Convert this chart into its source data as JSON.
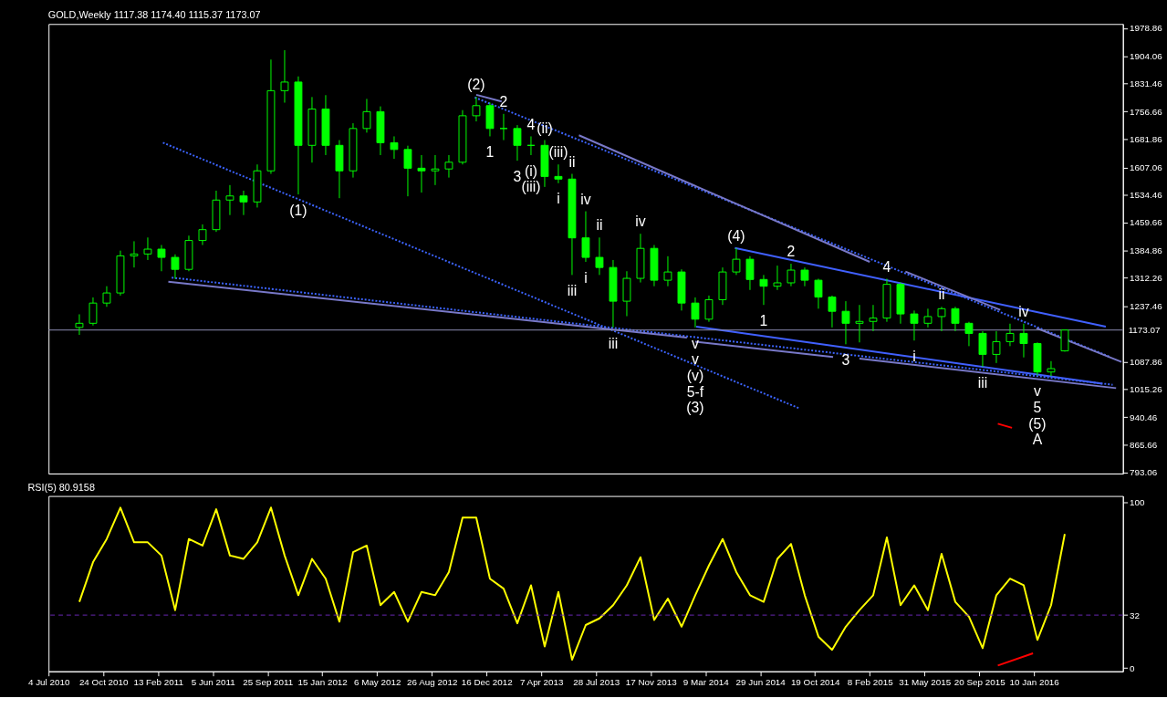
{
  "chart_data": [
    {
      "type": "candlestick",
      "title": "GOLD,Weekly 1117.38 1174.40 1115.37 1173.07",
      "color": "#00ff00",
      "tick_labels": "y",
      "x": [
        "2010-09-05",
        "2010-10-03",
        "2010-10-31",
        "2010-11-28",
        "2010-12-26",
        "2011-01-23",
        "2011-02-20",
        "2011-03-20",
        "2011-04-17",
        "2011-05-15",
        "2011-06-12",
        "2011-07-10",
        "2011-08-07",
        "2011-09-04",
        "2011-10-02",
        "2011-10-30",
        "2011-11-27",
        "2011-12-25",
        "2012-01-22",
        "2012-02-19",
        "2012-03-18",
        "2012-04-15",
        "2012-05-13",
        "2012-06-10",
        "2012-07-08",
        "2012-08-05",
        "2012-09-02",
        "2012-09-30",
        "2012-10-28",
        "2012-11-25",
        "2012-12-23",
        "2013-01-20",
        "2013-02-17",
        "2013-03-17",
        "2013-04-14",
        "2013-05-12",
        "2013-06-09",
        "2013-07-07",
        "2013-08-04",
        "2013-09-01",
        "2013-09-29",
        "2013-10-27",
        "2013-11-24",
        "2013-12-22",
        "2014-01-19",
        "2014-02-16",
        "2014-03-16",
        "2014-04-13",
        "2014-05-11",
        "2014-06-08",
        "2014-07-06",
        "2014-08-03",
        "2014-08-31",
        "2014-09-28",
        "2014-10-26",
        "2014-11-23",
        "2014-12-21",
        "2015-01-18",
        "2015-02-15",
        "2015-03-15",
        "2015-04-12",
        "2015-05-10",
        "2015-06-07",
        "2015-07-05",
        "2015-08-02",
        "2015-08-30",
        "2015-09-27",
        "2015-10-25",
        "2015-11-22",
        "2015-12-20",
        "2016-01-17",
        "2016-02-14",
        "2016-03-13"
      ],
      "ohlc": [
        [
          1180,
          1215,
          1160,
          1191
        ],
        [
          1191,
          1260,
          1185,
          1245
        ],
        [
          1245,
          1290,
          1235,
          1272
        ],
        [
          1272,
          1385,
          1265,
          1371
        ],
        [
          1371,
          1410,
          1340,
          1376
        ],
        [
          1376,
          1420,
          1360,
          1389
        ],
        [
          1389,
          1400,
          1330,
          1367
        ],
        [
          1367,
          1375,
          1310,
          1335
        ],
        [
          1335,
          1425,
          1330,
          1412
        ],
        [
          1412,
          1455,
          1400,
          1441
        ],
        [
          1441,
          1545,
          1435,
          1520
        ],
        [
          1520,
          1560,
          1480,
          1531
        ],
        [
          1531,
          1545,
          1480,
          1515
        ],
        [
          1515,
          1615,
          1500,
          1598
        ],
        [
          1598,
          1895,
          1590,
          1812
        ],
        [
          1812,
          1920,
          1780,
          1835
        ],
        [
          1835,
          1850,
          1535,
          1666
        ],
        [
          1666,
          1795,
          1620,
          1763
        ],
        [
          1763,
          1800,
          1640,
          1666
        ],
        [
          1666,
          1680,
          1525,
          1598
        ],
        [
          1598,
          1725,
          1580,
          1711
        ],
        [
          1711,
          1790,
          1700,
          1756
        ],
        [
          1756,
          1770,
          1640,
          1673
        ],
        [
          1673,
          1690,
          1630,
          1655
        ],
        [
          1655,
          1665,
          1530,
          1605
        ],
        [
          1605,
          1640,
          1540,
          1598
        ],
        [
          1598,
          1640,
          1560,
          1603
        ],
        [
          1603,
          1640,
          1580,
          1621
        ],
        [
          1621,
          1760,
          1615,
          1745
        ],
        [
          1745,
          1795,
          1730,
          1772
        ],
        [
          1772,
          1780,
          1690,
          1711
        ],
        [
          1711,
          1750,
          1680,
          1711
        ],
        [
          1711,
          1720,
          1625,
          1666
        ],
        [
          1666,
          1690,
          1640,
          1666
        ],
        [
          1666,
          1680,
          1555,
          1583
        ],
        [
          1583,
          1615,
          1565,
          1576
        ],
        [
          1576,
          1590,
          1320,
          1419
        ],
        [
          1419,
          1490,
          1355,
          1367
        ],
        [
          1367,
          1420,
          1320,
          1340
        ],
        [
          1340,
          1360,
          1180,
          1250
        ],
        [
          1250,
          1330,
          1210,
          1311
        ],
        [
          1311,
          1430,
          1300,
          1391
        ],
        [
          1391,
          1400,
          1290,
          1306
        ],
        [
          1306,
          1370,
          1290,
          1328
        ],
        [
          1328,
          1335,
          1225,
          1245
        ],
        [
          1245,
          1260,
          1180,
          1202
        ],
        [
          1202,
          1265,
          1195,
          1254
        ],
        [
          1254,
          1340,
          1240,
          1328
        ],
        [
          1328,
          1392,
          1320,
          1362
        ],
        [
          1362,
          1370,
          1280,
          1308
        ],
        [
          1308,
          1320,
          1240,
          1290
        ],
        [
          1290,
          1345,
          1280,
          1299
        ],
        [
          1299,
          1350,
          1290,
          1333
        ],
        [
          1333,
          1340,
          1290,
          1306
        ],
        [
          1306,
          1310,
          1230,
          1261
        ],
        [
          1261,
          1265,
          1180,
          1223
        ],
        [
          1223,
          1250,
          1135,
          1191
        ],
        [
          1191,
          1240,
          1140,
          1196
        ],
        [
          1196,
          1240,
          1170,
          1205
        ],
        [
          1205,
          1310,
          1195,
          1295
        ],
        [
          1295,
          1300,
          1190,
          1216
        ],
        [
          1216,
          1225,
          1145,
          1191
        ],
        [
          1191,
          1230,
          1180,
          1209
        ],
        [
          1209,
          1235,
          1170,
          1230
        ],
        [
          1230,
          1235,
          1170,
          1191
        ],
        [
          1191,
          1195,
          1130,
          1164
        ],
        [
          1164,
          1170,
          1075,
          1108
        ],
        [
          1108,
          1170,
          1085,
          1142
        ],
        [
          1142,
          1190,
          1130,
          1164
        ],
        [
          1164,
          1190,
          1100,
          1137
        ],
        [
          1137,
          1140,
          1052,
          1061
        ],
        [
          1061,
          1090,
          1050,
          1070
        ],
        [
          1117.38,
          1174.4,
          1115.37,
          1173.07
        ]
      ],
      "series": [
        {
          "type": "line",
          "x": [
            "2011-02-23",
            "2014-09-17"
          ],
          "values": [
            1673,
            964
          ],
          "color": "#3c64ff",
          "line_style": "dotted"
        },
        {
          "type": "line",
          "x": [
            "2012-11-22",
            "2016-06-12"
          ],
          "values": [
            1794,
            1102
          ],
          "color": "#3c64ff",
          "line_style": "dotted"
        },
        {
          "type": "line",
          "x": [
            "2011-03-13",
            "2016-06-19"
          ],
          "values": [
            1313,
            1027
          ],
          "color": "#3c64ff",
          "line_style": "dotted"
        },
        {
          "type": "line",
          "x": [
            "2014-05-08",
            "2016-06-05"
          ],
          "values": [
            1392,
            1182
          ],
          "color": "#4060ff",
          "line_style": "solid"
        },
        {
          "type": "line",
          "x": [
            "2014-02-18",
            "2016-05-29"
          ],
          "values": [
            1182,
            1030
          ],
          "color": "#4060ff",
          "line_style": "solid"
        },
        {
          "type": "line",
          "x": [
            "2011-03-06",
            "2014-01-30"
          ],
          "values": [
            1302,
            1153
          ],
          "color": "#7878c8",
          "line_style": "solid"
        },
        {
          "type": "line",
          "x": [
            "2014-02-16",
            "2014-11-25"
          ],
          "values": [
            1142,
            1101
          ],
          "color": "#7878c8",
          "line_style": "solid"
        },
        {
          "type": "line",
          "x": [
            "2015-01-18",
            "2016-06-26"
          ],
          "values": [
            1097,
            1018
          ],
          "color": "#7878c8",
          "line_style": "solid"
        },
        {
          "type": "line",
          "x": [
            "2012-11-25",
            "2013-01-16"
          ],
          "values": [
            1801,
            1783
          ],
          "color": "#7878c8",
          "line_style": "solid"
        },
        {
          "type": "line",
          "x": [
            "2013-06-23",
            "2015-02-08"
          ],
          "values": [
            1693,
            1355
          ],
          "color": "#7878c8",
          "line_style": "solid"
        },
        {
          "type": "line",
          "x": [
            "2015-04-22",
            "2015-11-02"
          ],
          "values": [
            1329,
            1227
          ],
          "color": "#7878c8",
          "line_style": "solid"
        },
        {
          "type": "line",
          "x": [
            "2016-01-15",
            "2016-07-07"
          ],
          "values": [
            1178,
            1088
          ],
          "color": "#7878c8",
          "line_style": "solid"
        },
        {
          "type": "line",
          "x": [
            "2015-10-28",
            "2015-11-26"
          ],
          "values": [
            923,
            912
          ],
          "color": "#ff0000",
          "line_style": "solid"
        }
      ],
      "xlim": [
        "2010-07-04",
        "2016-07-10"
      ],
      "ylim": [
        790,
        1990
      ],
      "yticks": [
        1978.86,
        1904.06,
        1831.46,
        1756.66,
        1681.86,
        1607.06,
        1534.46,
        1459.66,
        1384.86,
        1312.26,
        1237.46,
        1087.86,
        1015.26,
        940.46,
        865.66,
        793.06
      ],
      "ref_lines": [
        {
          "axis": "y",
          "value": 1173.07,
          "label": "1173.07",
          "color": "#8c8cb4",
          "line_style": "solid"
        }
      ],
      "annotations": [
        {
          "text": "(1)",
          "x": "2011-11-27",
          "y": 1535
        },
        {
          "text": "(2)",
          "x": "2012-11-25",
          "y": 1795
        },
        {
          "text": "2",
          "x": "2013-01-20",
          "y": 1750
        },
        {
          "text": "1",
          "x": "2012-12-23",
          "y": 1690
        },
        {
          "text": "4",
          "x": "2013-03-17",
          "y": 1690
        },
        {
          "text": "3",
          "x": "2013-02-17",
          "y": 1625
        },
        {
          "text": "(ii)",
          "x": "2013-04-14",
          "y": 1680
        },
        {
          "text": "(i)",
          "x": "2013-03-17",
          "y": 1640
        },
        {
          "text": "(iii)",
          "x": "2013-05-12",
          "y": 1615
        },
        {
          "text": "(iii)",
          "x": "2013-03-17",
          "y": 1640
        },
        {
          "text": "ii",
          "x": "2013-06-09",
          "y": 1590
        },
        {
          "text": "i",
          "x": "2013-05-12",
          "y": 1565
        },
        {
          "text": "iv",
          "x": "2013-07-07",
          "y": 1490
        },
        {
          "text": "iii",
          "x": "2013-06-09",
          "y": 1320
        },
        {
          "text": "ii",
          "x": "2013-08-04",
          "y": 1420
        },
        {
          "text": "i",
          "x": "2013-07-07",
          "y": 1355
        },
        {
          "text": "iii",
          "x": "2013-09-01",
          "y": 1180
        },
        {
          "text": "iv",
          "x": "2013-10-27",
          "y": 1430
        },
        {
          "text": "(4)",
          "x": "2014-05-11",
          "y": 1392
        },
        {
          "text": "2",
          "x": "2014-08-31",
          "y": 1350
        },
        {
          "text": "1",
          "x": "2014-07-06",
          "y": 1240
        },
        {
          "text": "4",
          "x": "2015-03-15",
          "y": 1310
        },
        {
          "text": "v",
          "x": "2014-02-16",
          "y": 1180
        },
        {
          "text": "v",
          "x": "2014-02-16",
          "y": 1180
        },
        {
          "text": "(v)",
          "x": "2014-02-16",
          "y": 1180
        },
        "5-f",
        "(3)",
        {
          "text": "3",
          "x": "2014-12-21",
          "y": 1135
        },
        {
          "text": "i",
          "x": "2015-05-10",
          "y": 1145
        },
        {
          "text": "ii",
          "x": "2015-07-05",
          "y": 1235
        },
        {
          "text": "iii",
          "x": "2015-09-27",
          "y": 1075
        },
        {
          "text": "iv",
          "x": "2015-12-20",
          "y": 1190
        },
        {
          "text": "v",
          "x": "2016-01-17",
          "y": 1052
        },
        {
          "text": "5",
          "x": "2016-01-17",
          "y": 1052
        },
        {
          "text": "(5)",
          "x": "2016-01-17",
          "y": 1052
        },
        "A"
      ]
    },
    {
      "type": "line",
      "title": "RSI(5) 80.9158",
      "series": [
        {
          "color": "#ffff00",
          "x": [
            "2010-09-05",
            "2010-10-03",
            "2010-10-31",
            "2010-11-28",
            "2010-12-26",
            "2011-01-23",
            "2011-02-20",
            "2011-03-20",
            "2011-04-17",
            "2011-05-15",
            "2011-06-12",
            "2011-07-10",
            "2011-08-07",
            "2011-09-04",
            "2011-10-02",
            "2011-10-30",
            "2011-11-27",
            "2011-12-25",
            "2012-01-22",
            "2012-02-19",
            "2012-03-18",
            "2012-04-15",
            "2012-05-13",
            "2012-06-10",
            "2012-07-08",
            "2012-08-05",
            "2012-09-02",
            "2012-09-30",
            "2012-10-28",
            "2012-11-25",
            "2012-12-23",
            "2013-01-20",
            "2013-02-17",
            "2013-03-17",
            "2013-04-14",
            "2013-05-12",
            "2013-06-09",
            "2013-07-07",
            "2013-08-04",
            "2013-09-01",
            "2013-09-29",
            "2013-10-27",
            "2013-11-24",
            "2013-12-22",
            "2014-01-19",
            "2014-02-16",
            "2014-03-16",
            "2014-04-13",
            "2014-05-11",
            "2014-06-08",
            "2014-07-06",
            "2014-08-03",
            "2014-08-31",
            "2014-09-28",
            "2014-10-26",
            "2014-11-23",
            "2014-12-21",
            "2015-01-18",
            "2015-02-15",
            "2015-03-15",
            "2015-04-12",
            "2015-05-10",
            "2015-06-07",
            "2015-07-05",
            "2015-08-02",
            "2015-08-30",
            "2015-09-27",
            "2015-10-25",
            "2015-11-22",
            "2015-12-20",
            "2016-01-17",
            "2016-02-14",
            "2016-03-13"
          ],
          "values": [
            40,
            64,
            78,
            97,
            76,
            76,
            68,
            35,
            78,
            74,
            96,
            68,
            66,
            76,
            97,
            68,
            44,
            66,
            54,
            28,
            70,
            74,
            38,
            46,
            28,
            46,
            44,
            58,
            91,
            91,
            54,
            48,
            27,
            50,
            13,
            46,
            5,
            26,
            30,
            38,
            50,
            67,
            29,
            42,
            25,
            44,
            62,
            78,
            58,
            44,
            40,
            66,
            75,
            44,
            19,
            11,
            25,
            35,
            44,
            79,
            38,
            50,
            35,
            69,
            40,
            31,
            12,
            44,
            54,
            50,
            17,
            38,
            81
          ]
        },
        {
          "color": "#ff0000",
          "x": [
            "2015-10-28",
            "2016-01-08"
          ],
          "values": [
            1.5,
            8.9
          ]
        }
      ],
      "xlim": [
        "2010-07-04",
        "2016-07-10"
      ],
      "xticks": [
        {
          "value": "2010-07-04",
          "label": "4 Jul 2010"
        },
        {
          "value": "2010-10-24",
          "label": "24 Oct 2010"
        },
        {
          "value": "2011-02-13",
          "label": "13 Feb 2011"
        },
        {
          "value": "2011-06-05",
          "label": "5 Jun 2011"
        },
        {
          "value": "2011-09-25",
          "label": "25 Sep 2011"
        },
        {
          "value": "2012-01-15",
          "label": "15 Jan 2012"
        },
        {
          "value": "2012-05-06",
          "label": "6 May 2012"
        },
        {
          "value": "2012-08-26",
          "label": "26 Aug 2012"
        },
        {
          "value": "2012-12-16",
          "label": "16 Dec 2012"
        },
        {
          "value": "2013-04-07",
          "label": "7 Apr 2013"
        },
        {
          "value": "2013-07-28",
          "label": "28 Jul 2013"
        },
        {
          "value": "2013-11-17",
          "label": "17 Nov 2013"
        },
        {
          "value": "2014-03-09",
          "label": "9 Mar 2014"
        },
        {
          "value": "2014-06-29",
          "label": "29 Jun 2014"
        },
        {
          "value": "2014-10-19",
          "label": "19 Oct 2014"
        },
        {
          "value": "2015-02-08",
          "label": "8 Feb 2015"
        },
        {
          "value": "2015-05-31",
          "label": "31 May 2015"
        },
        {
          "value": "2015-09-20",
          "label": "20 Sep 2015"
        },
        {
          "value": "2016-01-10",
          "label": "10 Jan 2016"
        }
      ],
      "ylim": [
        -2,
        104
      ],
      "yticks": [
        0,
        32,
        100
      ],
      "ref_lines": [
        {
          "axis": "y",
          "value": 32,
          "color": "#6a28b4",
          "line_style": "dashed"
        }
      ]
    }
  ]
}
